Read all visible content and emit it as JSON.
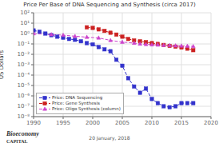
{
  "chart_data": {
    "type": "line",
    "title": "Price Per Base of DNA Sequencing and Synthesis (circa 2017)",
    "ylabel": "US Dollars",
    "log": "y",
    "grid": true,
    "legend": "lower left",
    "xlim": [
      1990,
      2020
    ],
    "xticks": [
      1990,
      1995,
      2000,
      2005,
      2010,
      2015,
      2020
    ],
    "ylim": [
      1e-08,
      100
    ],
    "yticks": [
      {
        "value": 1e-08,
        "label": "10⁻⁸"
      },
      {
        "value": 1e-07,
        "label": "10⁻⁷"
      },
      {
        "value": 1e-06,
        "label": "10⁻⁶"
      },
      {
        "value": 1e-05,
        "label": "10⁻⁵"
      },
      {
        "value": 0.0001,
        "label": "10⁻⁴"
      },
      {
        "value": 0.001,
        "label": "10⁻³"
      },
      {
        "value": 0.01,
        "label": "10⁻²"
      },
      {
        "value": 0.1,
        "label": "10⁻¹"
      },
      {
        "value": 1,
        "label": "10⁰"
      },
      {
        "value": 10,
        "label": "10¹"
      },
      {
        "value": 100,
        "label": "10²"
      }
    ],
    "annotations": [
      "Bioeconomy",
      "CAPITAL",
      "20 January, 2018"
    ],
    "series": [
      {
        "name": "Price: DNA Sequencing",
        "color": "#3333cc",
        "marker": "square",
        "line_style": "dashed",
        "x": [
          1990,
          1991,
          1992,
          1993,
          1994,
          1995,
          1996,
          1997,
          1998,
          1999,
          2000,
          2001,
          2002,
          2003,
          2004,
          2005,
          2006,
          2007,
          2008,
          2009,
          2010,
          2011,
          2012,
          2013,
          2014,
          2015,
          2016,
          2017
        ],
        "values": [
          2.0,
          1.5,
          1.0,
          0.7,
          0.5,
          0.4,
          0.3,
          0.25,
          0.18,
          0.12,
          0.09,
          0.05,
          0.03,
          0.02,
          0.003,
          0.0008,
          5e-05,
          8e-06,
          2e-06,
          5e-06,
          5e-07,
          2e-07,
          1e-07,
          8e-08,
          1e-07,
          2e-07,
          2e-07,
          2e-07
        ]
      },
      {
        "name": "Price: Gene Synthesis",
        "color": "#cc2222",
        "marker": "square",
        "line_style": "dashed",
        "x": [
          1999,
          2000,
          2001,
          2002,
          2003,
          2004,
          2005,
          2006,
          2007,
          2008,
          2009,
          2010,
          2011,
          2012,
          2013,
          2014,
          2015,
          2016,
          2017
        ],
        "values": [
          4.0,
          3.5,
          2.5,
          1.8,
          1.2,
          0.8,
          0.5,
          0.3,
          0.22,
          0.18,
          0.15,
          0.12,
          0.1,
          0.08,
          0.065,
          0.055,
          0.045,
          0.035,
          0.025
        ]
      },
      {
        "name": "Price: Oligo Synthesis (column)",
        "color": "#cc44cc",
        "marker": "triangle",
        "line_style": "dashed",
        "x": [
          1990,
          1993,
          1995,
          1997,
          1999,
          2001,
          2003,
          2005,
          2007,
          2008,
          2009,
          2010,
          2011,
          2012,
          2013,
          2014,
          2015,
          2016,
          2017
        ],
        "values": [
          1.0,
          0.8,
          0.7,
          0.55,
          0.45,
          0.38,
          0.22,
          0.15,
          0.12,
          0.1,
          0.09,
          0.085,
          0.08,
          0.075,
          0.072,
          0.068,
          0.065,
          0.062,
          0.058
        ]
      }
    ]
  }
}
